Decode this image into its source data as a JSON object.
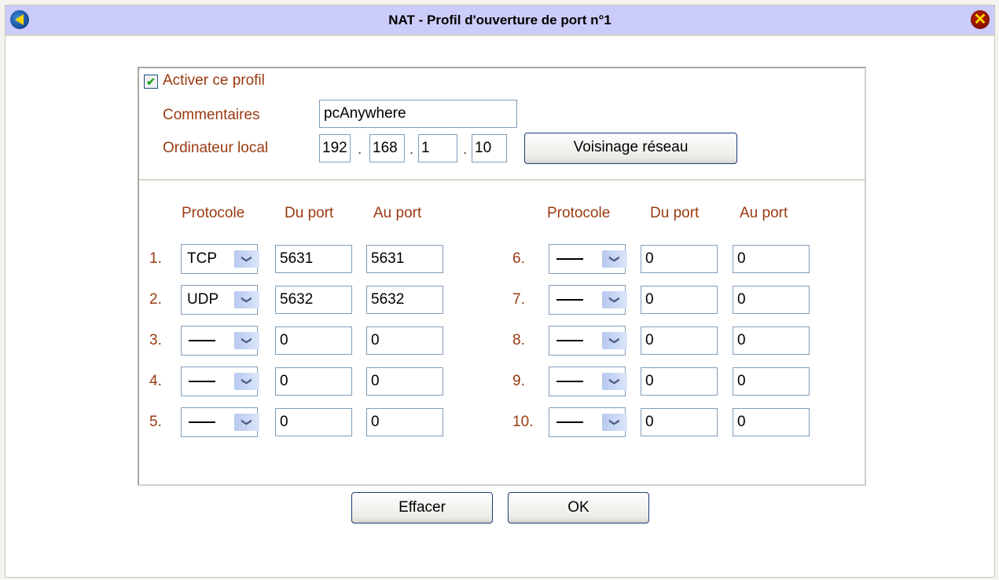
{
  "window": {
    "title": "NAT - Profil d'ouverture de port n°1",
    "back_icon": "back-arrow-icon",
    "close_icon": "close-icon"
  },
  "profile": {
    "enabled": true,
    "enable_label": "Activer ce profil",
    "comment_label": "Commentaires",
    "comment_value": "pcAnywhere",
    "local_label": "Ordinateur local",
    "ip": [
      "192",
      "168",
      "1",
      "10"
    ],
    "network_button": "Voisinage réseau"
  },
  "headers": {
    "protocol": "Protocole",
    "from": "Du port",
    "to": "Au port"
  },
  "rules": [
    {
      "num": "1.",
      "protocol": "TCP",
      "from": "5631",
      "to": "5631"
    },
    {
      "num": "2.",
      "protocol": "UDP",
      "from": "5632",
      "to": "5632"
    },
    {
      "num": "3.",
      "protocol": "—",
      "from": "0",
      "to": "0"
    },
    {
      "num": "4.",
      "protocol": "—",
      "from": "0",
      "to": "0"
    },
    {
      "num": "5.",
      "protocol": "—",
      "from": "0",
      "to": "0"
    },
    {
      "num": "6.",
      "protocol": "—",
      "from": "0",
      "to": "0"
    },
    {
      "num": "7.",
      "protocol": "—",
      "from": "0",
      "to": "0"
    },
    {
      "num": "8.",
      "protocol": "—",
      "from": "0",
      "to": "0"
    },
    {
      "num": "9.",
      "protocol": "—",
      "from": "0",
      "to": "0"
    },
    {
      "num": "10.",
      "protocol": "—",
      "from": "0",
      "to": "0"
    }
  ],
  "buttons": {
    "clear": "Effacer",
    "ok": "OK"
  }
}
